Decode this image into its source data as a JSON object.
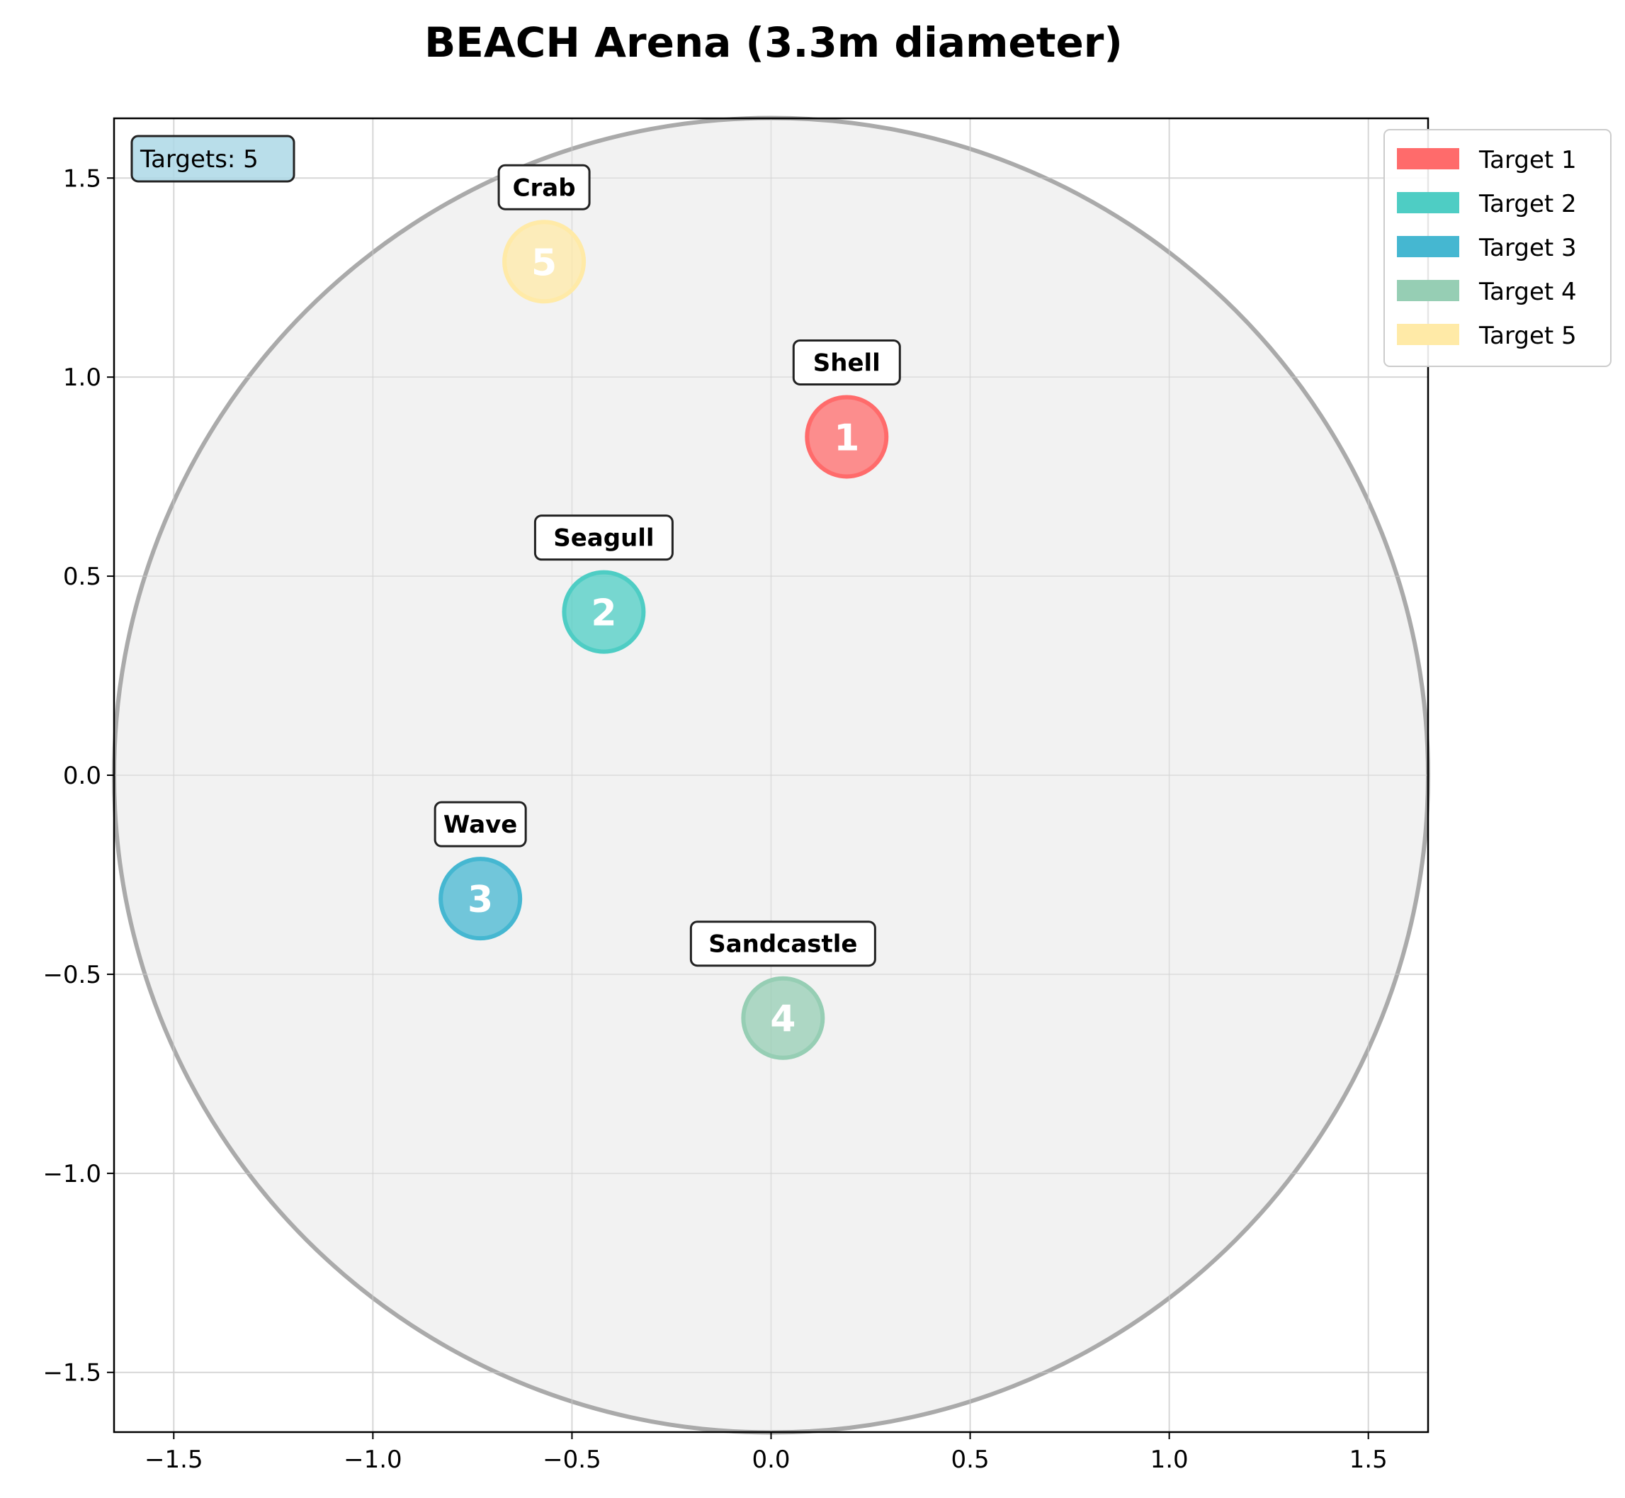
{
  "chart_data": {
    "type": "scatter",
    "title": "BEACH Arena (3.3m diameter)",
    "xlabel": "",
    "ylabel": "",
    "xlim": [
      -1.65,
      1.65
    ],
    "ylim": [
      -1.65,
      1.65
    ],
    "grid": true,
    "legend_position": "upper-right-outside",
    "x_ticks": [
      -1.5,
      -1.0,
      -0.5,
      0.0,
      0.5,
      1.0,
      1.5
    ],
    "x_tick_labels": [
      "−1.5",
      "−1.0",
      "−0.5",
      "0.0",
      "0.5",
      "1.0",
      "1.5"
    ],
    "y_ticks": [
      1.5,
      1.0,
      0.5,
      0.0,
      -0.5,
      -1.0,
      -1.5
    ],
    "y_tick_labels": [
      "1.5",
      "1.0",
      "0.5",
      "0.0",
      "−0.5",
      "−1.0",
      "−1.5"
    ],
    "arena": {
      "center": [
        0,
        0
      ],
      "radius": 1.65,
      "fill": "#f0f0f0",
      "edge": "#aaaaaa"
    },
    "annotation": "Targets: 5",
    "targets": [
      {
        "number": "1",
        "name": "Shell",
        "legend": "Target 1",
        "x": 0.19,
        "y": 0.85,
        "color": "#ff6b6b"
      },
      {
        "number": "2",
        "name": "Seagull",
        "legend": "Target 2",
        "x": -0.42,
        "y": 0.41,
        "color": "#4ecdc4"
      },
      {
        "number": "3",
        "name": "Wave",
        "legend": "Target 3",
        "x": -0.73,
        "y": -0.31,
        "color": "#45b7d1"
      },
      {
        "number": "4",
        "name": "Sandcastle",
        "legend": "Target 4",
        "x": 0.03,
        "y": -0.61,
        "color": "#96ceb4"
      },
      {
        "number": "5",
        "name": "Crab",
        "legend": "Target 5",
        "x": -0.57,
        "y": 1.29,
        "color": "#ffeaa7"
      }
    ]
  }
}
